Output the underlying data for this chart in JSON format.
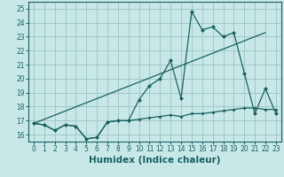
{
  "xlabel": "Humidex (Indice chaleur)",
  "background_color": "#c8e8e8",
  "grid_color": "#a0c8c8",
  "line_color": "#1a6060",
  "xlim": [
    -0.5,
    23.5
  ],
  "ylim": [
    15.5,
    25.5
  ],
  "xticks": [
    0,
    1,
    2,
    3,
    4,
    5,
    6,
    7,
    8,
    9,
    10,
    11,
    12,
    13,
    14,
    15,
    16,
    17,
    18,
    19,
    20,
    21,
    22,
    23
  ],
  "yticks": [
    16,
    17,
    18,
    19,
    20,
    21,
    22,
    23,
    24,
    25
  ],
  "series1_y": [
    16.8,
    16.7,
    16.3,
    16.7,
    16.6,
    15.7,
    15.8,
    16.9,
    17.0,
    17.0,
    18.5,
    19.5,
    20.0,
    21.3,
    18.6,
    24.8,
    23.5,
    23.7,
    23.0,
    23.3,
    20.4,
    17.5,
    19.3,
    17.5
  ],
  "series2_y": [
    16.8,
    16.7,
    16.3,
    16.7,
    16.6,
    15.7,
    15.8,
    16.9,
    17.0,
    17.0,
    17.1,
    17.2,
    17.3,
    17.4,
    17.3,
    17.5,
    17.5,
    17.6,
    17.7,
    17.8,
    17.9,
    17.9,
    17.8,
    17.8
  ],
  "series3_x": [
    0,
    22
  ],
  "series3_y": [
    16.8,
    23.3
  ],
  "marker_size1": 2.5,
  "marker_size2": 2.0,
  "lw": 0.9
}
